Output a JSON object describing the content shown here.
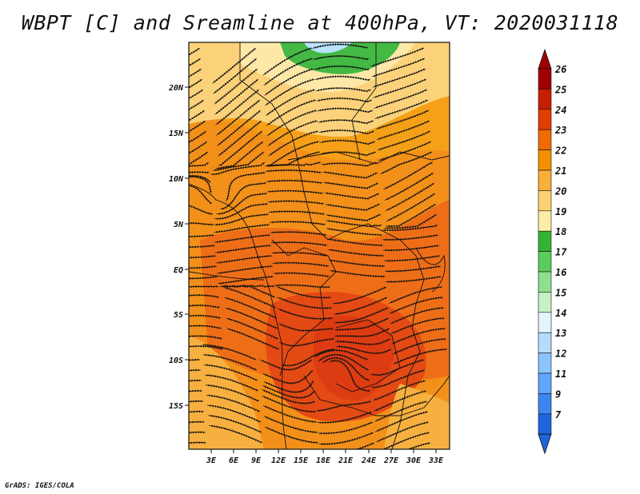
{
  "title": "WBPT [C] and Sreamline at 400hPa, VT: 2020031118",
  "credit": "GrADS: IGES/COLA",
  "map": {
    "lat_labels": [
      "20N",
      "15N",
      "10N",
      "5N",
      "EQ",
      "5S",
      "10S",
      "15S"
    ],
    "lon_labels": [
      "3E",
      "6E",
      "9E",
      "12E",
      "15E",
      "18E",
      "21E",
      "24E",
      "27E",
      "30E",
      "33E"
    ]
  },
  "colorbar": {
    "levels": [
      "26",
      "25",
      "24",
      "23",
      "22",
      "21",
      "20",
      "19",
      "18",
      "17",
      "16",
      "15",
      "14",
      "13",
      "12",
      "11",
      "9",
      "7"
    ],
    "colors": [
      "#a00000",
      "#c81e00",
      "#e33c00",
      "#f06a00",
      "#f59000",
      "#f9b03a",
      "#fbd072",
      "#fdeca6",
      "#34b434",
      "#5ccc5c",
      "#8ee08e",
      "#c6f0c6",
      "#e4f4ff",
      "#b4dcff",
      "#8cc4ff",
      "#5ea6ff",
      "#3c86f0",
      "#1e64dc"
    ],
    "top_arrow_color": "#a00000",
    "bottom_arrow_color": "#1e64dc"
  }
}
